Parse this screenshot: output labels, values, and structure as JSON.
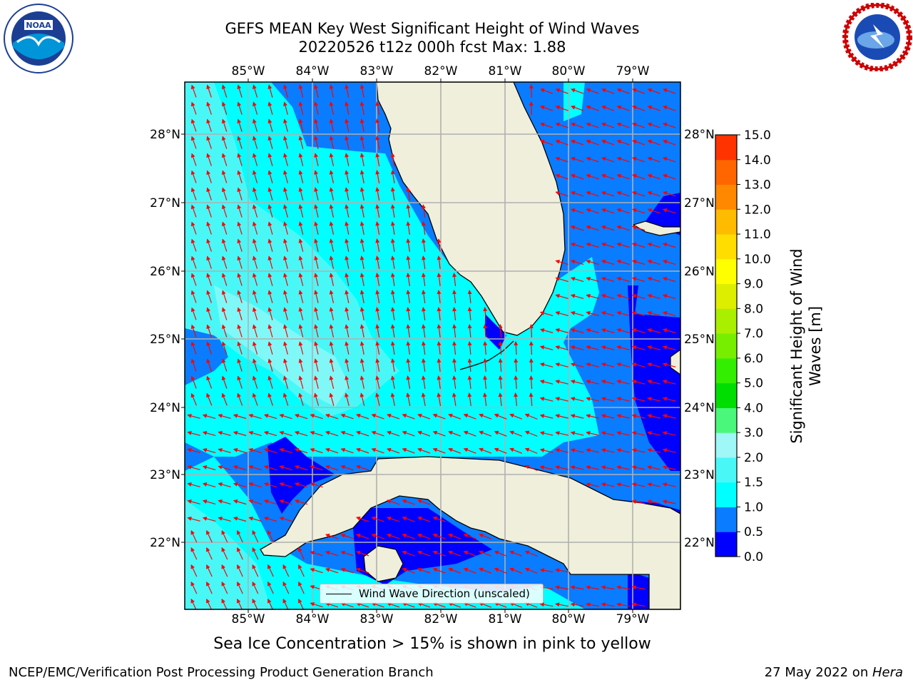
{
  "title": {
    "line1": "GEFS MEAN Key West Significant Height of Wind Waves",
    "line2": "20220526 t12z 000h fcst   Max: 1.88"
  },
  "map": {
    "lon_labels": [
      "85°W",
      "84°W",
      "83°W",
      "82°W",
      "81°W",
      "80°W",
      "79°W"
    ],
    "lat_labels": [
      "28°N",
      "27°N",
      "26°N",
      "25°N",
      "24°N",
      "23°N",
      "22°N"
    ],
    "colors": {
      "ocean_bright_cyan": "#00ffff",
      "ocean_light_cyan": "#4af7f7",
      "ocean_pale_cyan": "#80f8f8",
      "ocean_blue": "#0a7cff",
      "ocean_dark_blue": "#0000ff",
      "land": "#efefdc",
      "arrows": "#ff0000",
      "grid": "#b0b0b0"
    },
    "legend_label": "Wind Wave Direction (unscaled)"
  },
  "colorbar": {
    "title_line1": "Significant Height of Wind",
    "title_line2": "Waves [m]",
    "ticks": [
      "15.0",
      "14.0",
      "13.0",
      "12.0",
      "11.0",
      "10.0",
      "9.0",
      "8.0",
      "7.0",
      "6.0",
      "5.0",
      "4.0",
      "3.0",
      "2.0",
      "1.5",
      "1.0",
      "0.5",
      "0.0"
    ],
    "colors_bottom_to_top": [
      "#0000ff",
      "#0a7cff",
      "#00ffff",
      "#4af7f7",
      "#9ff7f7",
      "#4af77a",
      "#00dd00",
      "#33ee00",
      "#77ee00",
      "#aaee00",
      "#ddee00",
      "#ffff00",
      "#ffdd00",
      "#ffbb00",
      "#ff8800",
      "#ff6600",
      "#ff3300"
    ]
  },
  "subtitle": "Sea Ice Concentration > 15% is shown in pink to yellow",
  "footer": {
    "left": "NCEP/EMC/Verification Post Processing Product Generation Branch",
    "right_date": "27 May 2022 on ",
    "right_host": "Hera"
  }
}
